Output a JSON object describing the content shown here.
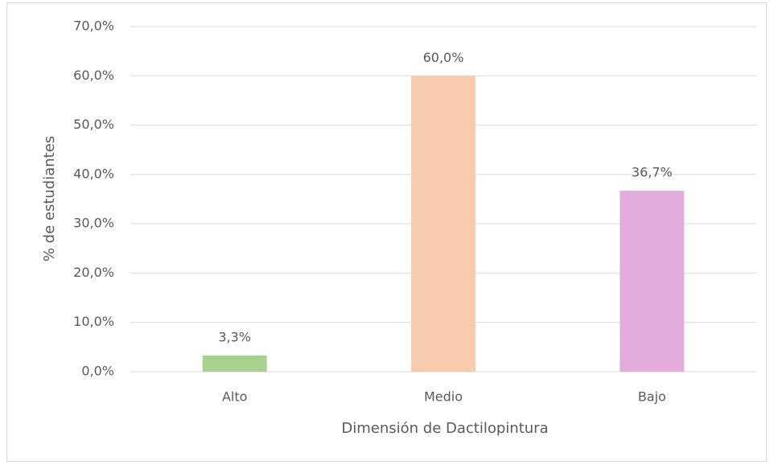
{
  "chart_data": {
    "type": "bar",
    "xlabel": "Dimensión de Dactilopintura",
    "ylabel": "% de estudiantes",
    "categories": [
      "Alto",
      "Medio",
      "Bajo"
    ],
    "values": [
      3.3,
      60.0,
      36.7
    ],
    "value_labels": [
      "3,3%",
      "60,0%",
      "36,7%"
    ],
    "colors": [
      "#a9d18e",
      "#f8cbad",
      "#e4acdc"
    ],
    "ylim": [
      0,
      70
    ],
    "yticks": [
      {
        "value": 0,
        "label": "0,0%"
      },
      {
        "value": 10,
        "label": "10,0%"
      },
      {
        "value": 20,
        "label": "20,0%"
      },
      {
        "value": 30,
        "label": "30,0%"
      },
      {
        "value": 40,
        "label": "40,0%"
      },
      {
        "value": 50,
        "label": "50,0%"
      },
      {
        "value": 60,
        "label": "60,0%"
      },
      {
        "value": 70,
        "label": "70,0%"
      }
    ],
    "grid": true
  }
}
